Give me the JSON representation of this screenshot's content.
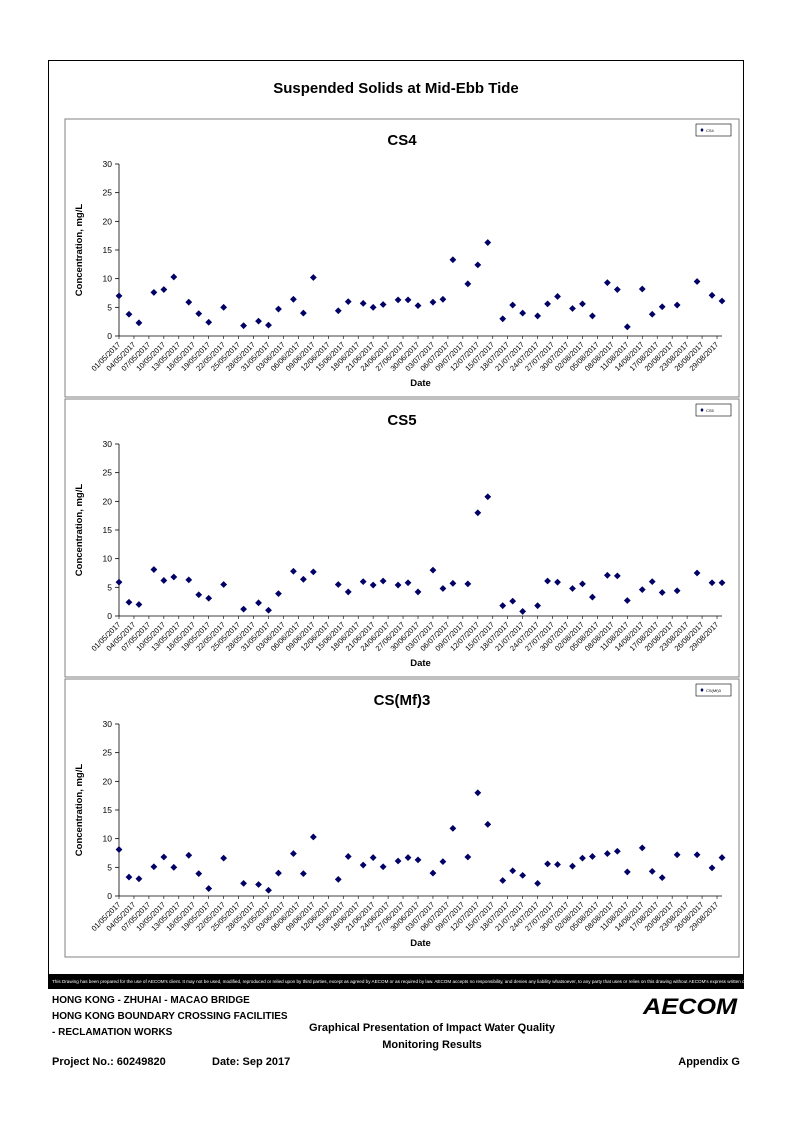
{
  "page": {
    "title": "Suspended Solids at Mid-Ebb Tide",
    "disclaimer": "This Drawing has been prepared for the use of AECOM's client. It may not be used, modified, reproduced or relied upon by third parties, except as agreed by AECOM or as required by law. AECOM accepts no responsibility, and denies any liability whatsoever, to any party that uses or relies on this drawing without AECOM's express written consent.",
    "footer": {
      "line1": "HONG KONG - ZHUHAI - MACAO BRIDGE",
      "line2": "HONG KONG BOUNDARY CROSSING FACILITIES",
      "line3": "- RECLAMATION WORKS",
      "description_line1": "Graphical Presentation of Impact Water Quality",
      "description_line2": "Monitoring Results",
      "project": "Project No.: 60249820",
      "date": "Date: Sep 2017",
      "appendix": "Appendix G",
      "logo_text": "AECOM"
    },
    "colors": {
      "marker": "#000066",
      "frame": "#000000",
      "disclaimer_bg": "#000000"
    }
  },
  "chart_data": [
    {
      "type": "scatter",
      "title": "CS4",
      "xlabel": "Date",
      "ylabel": "Concentration, mg/L",
      "ylim": [
        0,
        30
      ],
      "yticks": [
        0,
        5,
        10,
        15,
        20,
        25,
        30
      ],
      "grid": false,
      "legend_position": "top-right",
      "x_tick_labels": [
        "01/05/2017",
        "04/05/2017",
        "07/05/2017",
        "10/05/2017",
        "13/05/2017",
        "16/05/2017",
        "19/05/2017",
        "22/05/2017",
        "25/05/2017",
        "28/05/2017",
        "31/05/2017",
        "03/06/2017",
        "06/06/2017",
        "09/06/2017",
        "12/06/2017",
        "15/06/2017",
        "18/06/2017",
        "21/06/2017",
        "24/06/2017",
        "27/06/2017",
        "30/06/2017",
        "03/07/2017",
        "06/07/2017",
        "09/07/2017",
        "12/07/2017",
        "15/07/2017",
        "18/07/2017",
        "21/07/2017",
        "24/07/2017",
        "27/07/2017",
        "30/07/2017",
        "02/08/2017",
        "05/08/2017",
        "08/08/2017",
        "11/08/2017",
        "14/08/2017",
        "17/08/2017",
        "20/08/2017",
        "23/08/2017",
        "26/08/2017",
        "29/08/2017"
      ],
      "series": [
        {
          "name": "CS4",
          "x": [
            "01/05/2017",
            "03/05/2017",
            "05/05/2017",
            "08/05/2017",
            "10/05/2017",
            "12/05/2017",
            "15/05/2017",
            "17/05/2017",
            "19/05/2017",
            "22/05/2017",
            "26/05/2017",
            "29/05/2017",
            "31/05/2017",
            "02/06/2017",
            "05/06/2017",
            "07/06/2017",
            "09/06/2017",
            "14/06/2017",
            "16/06/2017",
            "19/06/2017",
            "21/06/2017",
            "23/06/2017",
            "26/06/2017",
            "28/06/2017",
            "30/06/2017",
            "03/07/2017",
            "05/07/2017",
            "07/07/2017",
            "10/07/2017",
            "12/07/2017",
            "14/07/2017",
            "17/07/2017",
            "19/07/2017",
            "21/07/2017",
            "24/07/2017",
            "26/07/2017",
            "28/07/2017",
            "31/07/2017",
            "02/08/2017",
            "04/08/2017",
            "07/08/2017",
            "09/08/2017",
            "11/08/2017",
            "14/08/2017",
            "16/08/2017",
            "18/08/2017",
            "21/08/2017",
            "25/08/2017",
            "28/08/2017",
            "30/08/2017"
          ],
          "y": [
            7.0,
            3.8,
            2.3,
            7.6,
            8.1,
            10.3,
            5.9,
            3.9,
            2.4,
            5.0,
            1.8,
            2.6,
            1.9,
            4.7,
            6.4,
            4.0,
            10.2,
            4.4,
            6.0,
            5.7,
            5.0,
            5.5,
            6.3,
            6.3,
            5.3,
            5.9,
            6.4,
            13.3,
            9.1,
            12.4,
            16.3,
            3.0,
            5.4,
            4.0,
            3.5,
            5.6,
            6.9,
            4.8,
            5.6,
            3.5,
            9.3,
            8.1,
            1.6,
            8.2,
            3.8,
            5.1,
            5.4,
            9.5,
            7.1,
            6.1
          ]
        }
      ]
    },
    {
      "type": "scatter",
      "title": "CS5",
      "xlabel": "Date",
      "ylabel": "Concentration, mg/L",
      "ylim": [
        0,
        30
      ],
      "yticks": [
        0,
        5,
        10,
        15,
        20,
        25,
        30
      ],
      "grid": false,
      "legend_position": "top-right",
      "x_tick_labels": [
        "01/05/2017",
        "04/05/2017",
        "07/05/2017",
        "10/05/2017",
        "13/05/2017",
        "16/05/2017",
        "19/05/2017",
        "22/05/2017",
        "25/05/2017",
        "28/05/2017",
        "31/05/2017",
        "03/06/2017",
        "06/06/2017",
        "09/06/2017",
        "12/06/2017",
        "15/06/2017",
        "18/06/2017",
        "21/06/2017",
        "24/06/2017",
        "27/06/2017",
        "30/06/2017",
        "03/07/2017",
        "06/07/2017",
        "09/07/2017",
        "12/07/2017",
        "15/07/2017",
        "18/07/2017",
        "21/07/2017",
        "24/07/2017",
        "27/07/2017",
        "30/07/2017",
        "02/08/2017",
        "05/08/2017",
        "08/08/2017",
        "11/08/2017",
        "14/08/2017",
        "17/08/2017",
        "20/08/2017",
        "23/08/2017",
        "26/08/2017",
        "29/08/2017"
      ],
      "series": [
        {
          "name": "CS5",
          "x": [
            "01/05/2017",
            "03/05/2017",
            "05/05/2017",
            "08/05/2017",
            "10/05/2017",
            "12/05/2017",
            "15/05/2017",
            "17/05/2017",
            "19/05/2017",
            "22/05/2017",
            "26/05/2017",
            "29/05/2017",
            "31/05/2017",
            "02/06/2017",
            "05/06/2017",
            "07/06/2017",
            "09/06/2017",
            "14/06/2017",
            "16/06/2017",
            "19/06/2017",
            "21/06/2017",
            "23/06/2017",
            "26/06/2017",
            "28/06/2017",
            "30/06/2017",
            "03/07/2017",
            "05/07/2017",
            "07/07/2017",
            "10/07/2017",
            "12/07/2017",
            "14/07/2017",
            "17/07/2017",
            "19/07/2017",
            "21/07/2017",
            "24/07/2017",
            "26/07/2017",
            "28/07/2017",
            "31/07/2017",
            "02/08/2017",
            "04/08/2017",
            "07/08/2017",
            "09/08/2017",
            "11/08/2017",
            "14/08/2017",
            "16/08/2017",
            "18/08/2017",
            "21/08/2017",
            "25/08/2017",
            "28/08/2017",
            "30/08/2017"
          ],
          "y": [
            5.9,
            2.4,
            2.0,
            8.1,
            6.2,
            6.8,
            6.3,
            3.7,
            3.1,
            5.5,
            1.2,
            2.3,
            1.0,
            3.9,
            7.8,
            6.4,
            7.7,
            5.5,
            4.2,
            6.0,
            5.4,
            6.1,
            5.4,
            5.8,
            4.2,
            8.0,
            4.8,
            5.7,
            5.6,
            18.0,
            20.8,
            1.8,
            2.6,
            0.8,
            1.8,
            6.1,
            5.9,
            4.8,
            5.6,
            3.3,
            7.1,
            7.0,
            2.7,
            4.6,
            6.0,
            4.1,
            4.4,
            7.5,
            5.8,
            5.8
          ]
        }
      ]
    },
    {
      "type": "scatter",
      "title": "CS(Mf)3",
      "xlabel": "Date",
      "ylabel": "Concentration, mg/L",
      "ylim": [
        0,
        30
      ],
      "yticks": [
        0,
        5,
        10,
        15,
        20,
        25,
        30
      ],
      "grid": false,
      "legend_position": "top-right",
      "x_tick_labels": [
        "01/05/2017",
        "04/05/2017",
        "07/05/2017",
        "10/05/2017",
        "13/05/2017",
        "16/05/2017",
        "19/05/2017",
        "22/05/2017",
        "25/05/2017",
        "28/05/2017",
        "31/05/2017",
        "03/06/2017",
        "06/06/2017",
        "09/06/2017",
        "12/06/2017",
        "15/06/2017",
        "18/06/2017",
        "21/06/2017",
        "24/06/2017",
        "27/06/2017",
        "30/06/2017",
        "03/07/2017",
        "06/07/2017",
        "09/07/2017",
        "12/07/2017",
        "15/07/2017",
        "18/07/2017",
        "21/07/2017",
        "24/07/2017",
        "27/07/2017",
        "30/07/2017",
        "02/08/2017",
        "05/08/2017",
        "08/08/2017",
        "11/08/2017",
        "14/08/2017",
        "17/08/2017",
        "20/08/2017",
        "23/08/2017",
        "26/08/2017",
        "29/08/2017"
      ],
      "series": [
        {
          "name": "CS(Mf)3",
          "x": [
            "01/05/2017",
            "03/05/2017",
            "05/05/2017",
            "08/05/2017",
            "10/05/2017",
            "12/05/2017",
            "15/05/2017",
            "17/05/2017",
            "19/05/2017",
            "22/05/2017",
            "26/05/2017",
            "29/05/2017",
            "31/05/2017",
            "02/06/2017",
            "05/06/2017",
            "07/06/2017",
            "09/06/2017",
            "14/06/2017",
            "16/06/2017",
            "19/06/2017",
            "21/06/2017",
            "23/06/2017",
            "26/06/2017",
            "28/06/2017",
            "30/06/2017",
            "03/07/2017",
            "05/07/2017",
            "07/07/2017",
            "10/07/2017",
            "12/07/2017",
            "14/07/2017",
            "17/07/2017",
            "19/07/2017",
            "21/07/2017",
            "24/07/2017",
            "26/07/2017",
            "28/07/2017",
            "31/07/2017",
            "02/08/2017",
            "04/08/2017",
            "07/08/2017",
            "09/08/2017",
            "11/08/2017",
            "14/08/2017",
            "16/08/2017",
            "18/08/2017",
            "21/08/2017",
            "25/08/2017",
            "28/08/2017",
            "30/08/2017"
          ],
          "y": [
            8.1,
            3.3,
            3.0,
            5.1,
            6.8,
            5.0,
            7.1,
            3.9,
            1.3,
            6.6,
            2.2,
            2.0,
            1.0,
            4.0,
            7.4,
            3.9,
            10.3,
            2.9,
            6.9,
            5.4,
            6.7,
            5.1,
            6.1,
            6.7,
            6.3,
            4.0,
            6.0,
            11.8,
            6.8,
            18.0,
            12.5,
            2.7,
            4.4,
            3.6,
            2.2,
            5.6,
            5.5,
            5.2,
            6.6,
            6.9,
            7.4,
            7.8,
            4.2,
            8.4,
            4.3,
            3.2,
            7.2,
            7.2,
            4.9,
            6.7
          ]
        }
      ]
    }
  ]
}
